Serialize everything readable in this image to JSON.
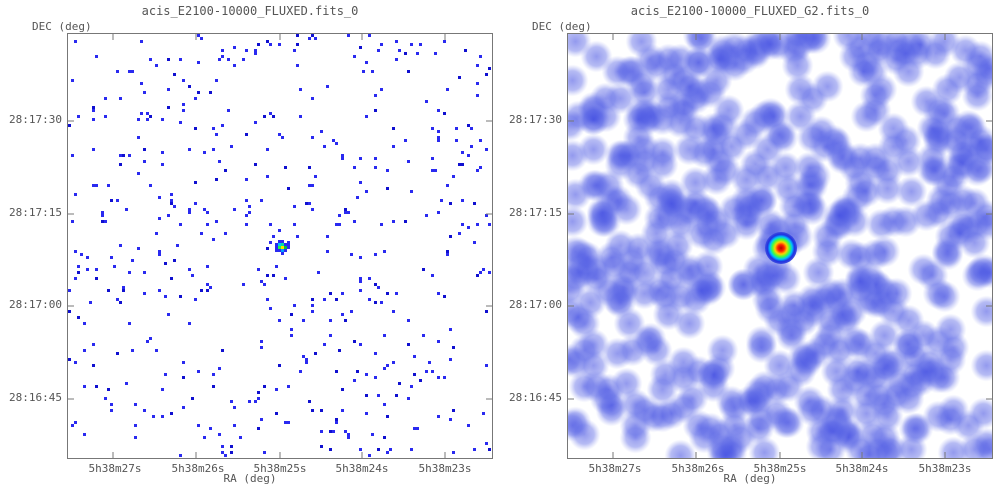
{
  "panels": [
    {
      "title": "acis_E2100-10000_FLUXED.fits_0",
      "ylabel": "DEC (deg)",
      "xlabel": "RA (deg)",
      "style": "raw"
    },
    {
      "title": "acis_E2100-10000_FLUXED_G2.fits_0",
      "ylabel": "DEC (deg)",
      "xlabel": "RA (deg)",
      "style": "smoothed"
    }
  ],
  "chart_data": [
    {
      "type": "heatmap",
      "title": "acis_E2100-10000_FLUXED.fits_0",
      "xlabel": "RA (deg)",
      "ylabel": "DEC (deg)",
      "x_ticks": [
        "5h38m27s",
        "5h38m26s",
        "5h38m25s",
        "5h38m24s",
        "5h38m23s"
      ],
      "y_ticks": [
        "28:17:30",
        "28:17:15",
        "28:17:00",
        "28:16:45"
      ],
      "source": {
        "ra": "5h38m25s",
        "dec": "28:17:10"
      },
      "colormap": [
        "#ffffff",
        "#0000ff",
        "#00ff00",
        "#ffff00",
        "#ff0000"
      ],
      "grid": false
    },
    {
      "type": "heatmap",
      "title": "acis_E2100-10000_FLUXED_G2.fits_0",
      "xlabel": "RA (deg)",
      "ylabel": "DEC (deg)",
      "x_ticks": [
        "5h38m27s",
        "5h38m26s",
        "5h38m25s",
        "5h38m24s",
        "5h38m23s"
      ],
      "y_ticks": [
        "28:17:30",
        "28:17:15",
        "28:17:00",
        "28:16:45"
      ],
      "source": {
        "ra": "5h38m25s",
        "dec": "28:17:10"
      },
      "colormap": [
        "#ffffff",
        "#0000ff",
        "#00ff00",
        "#ffff00",
        "#ff0000"
      ],
      "grid": false
    }
  ]
}
